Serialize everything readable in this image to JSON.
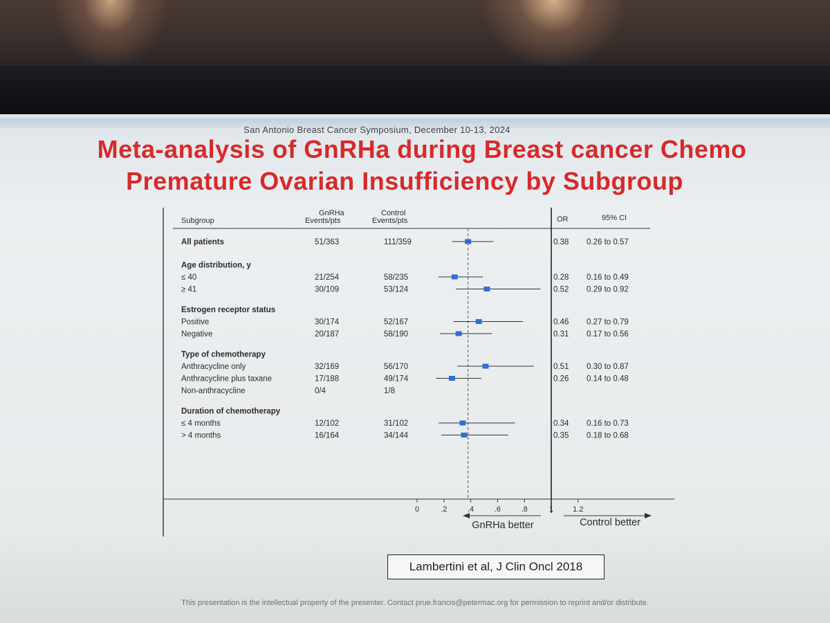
{
  "slide": {
    "symposium": "San Antonio Breast Cancer Symposium, December 10-13, 2024",
    "title_line1": "Meta-analysis of GnRHa during Breast cancer Chemo",
    "title_line2": "Premature Ovarian Insufficiency by Subgroup",
    "citation": "Lambertini et al, J Clin Oncl 2018",
    "footer": "This presentation is the intellectual property of the presenter. Contact prue.francis@petermac.org for permission to reprint and/or distribute."
  },
  "colors": {
    "title": "#d62a2a",
    "marker": "#2e6fd6",
    "text": "#2b2b2b"
  },
  "chart_data": {
    "type": "forest",
    "headers": {
      "subgroup": "Subgroup",
      "gnrha_line1": "GnRHa",
      "gnrha_line2": "Events/pts",
      "control_line1": "Control",
      "control_line2": "Events/pts",
      "or": "OR",
      "ci": "95% CI"
    },
    "groups": [
      {
        "heading": "",
        "rows": [
          {
            "label": "All patients",
            "bold": true,
            "gnrha": "51/363",
            "control": "111/359",
            "or": 0.38,
            "or_text": "0.38",
            "ci_low": 0.26,
            "ci_high": 0.57,
            "ci_text": "0.26 to 0.57"
          }
        ]
      },
      {
        "heading": "Age distribution, y",
        "rows": [
          {
            "label": "≤ 40",
            "gnrha": "21/254",
            "control": "58/235",
            "or": 0.28,
            "or_text": "0.28",
            "ci_low": 0.16,
            "ci_high": 0.49,
            "ci_text": "0.16 to 0.49"
          },
          {
            "label": "≥ 41",
            "gnrha": "30/109",
            "control": "53/124",
            "or": 0.52,
            "or_text": "0.52",
            "ci_low": 0.29,
            "ci_high": 0.92,
            "ci_text": "0.29 to 0.92"
          }
        ]
      },
      {
        "heading": "Estrogen receptor status",
        "rows": [
          {
            "label": "Positive",
            "gnrha": "30/174",
            "control": "52/167",
            "or": 0.46,
            "or_text": "0.46",
            "ci_low": 0.27,
            "ci_high": 0.79,
            "ci_text": "0.27 to 0.79"
          },
          {
            "label": "Negative",
            "gnrha": "20/187",
            "control": "58/190",
            "or": 0.31,
            "or_text": "0.31",
            "ci_low": 0.17,
            "ci_high": 0.56,
            "ci_text": "0.17 to 0.56"
          }
        ]
      },
      {
        "heading": "Type of chemotherapy",
        "rows": [
          {
            "label": "Anthracycline only",
            "gnrha": "32/169",
            "control": "56/170",
            "or": 0.51,
            "or_text": "0.51",
            "ci_low": 0.3,
            "ci_high": 0.87,
            "ci_text": "0.30 to 0.87"
          },
          {
            "label": "Anthracycline plus taxane",
            "gnrha": "17/188",
            "control": "49/174",
            "or": 0.26,
            "or_text": "0.26",
            "ci_low": 0.14,
            "ci_high": 0.48,
            "ci_text": "0.14 to 0.48"
          },
          {
            "label": "Non-anthracycline",
            "gnrha": "0/4",
            "control": "1/8",
            "or": null,
            "or_text": "",
            "ci_low": null,
            "ci_high": null,
            "ci_text": ""
          }
        ]
      },
      {
        "heading": "Duration of chemotherapy",
        "rows": [
          {
            "label": "≤ 4 months",
            "gnrha": "12/102",
            "control": "31/102",
            "or": 0.34,
            "or_text": "0.34",
            "ci_low": 0.16,
            "ci_high": 0.73,
            "ci_text": "0.16 to 0.73"
          },
          {
            "label": "> 4 months",
            "gnrha": "16/164",
            "control": "34/144",
            "or": 0.35,
            "or_text": "0.35",
            "ci_low": 0.18,
            "ci_high": 0.68,
            "ci_text": "0.18 to 0.68"
          }
        ]
      }
    ],
    "x_axis": {
      "ticks": [
        0,
        0.2,
        0.4,
        0.6,
        0.8,
        1,
        1.2
      ],
      "tick_labels": [
        "0",
        ".2",
        ".4",
        ".6",
        ".8",
        "1",
        "1.2"
      ],
      "xlim": [
        0,
        1.2
      ],
      "null_value": 1,
      "pooled_reference": 0.38
    },
    "favors_left": "GnRHa better",
    "favors_right": "Control better"
  }
}
